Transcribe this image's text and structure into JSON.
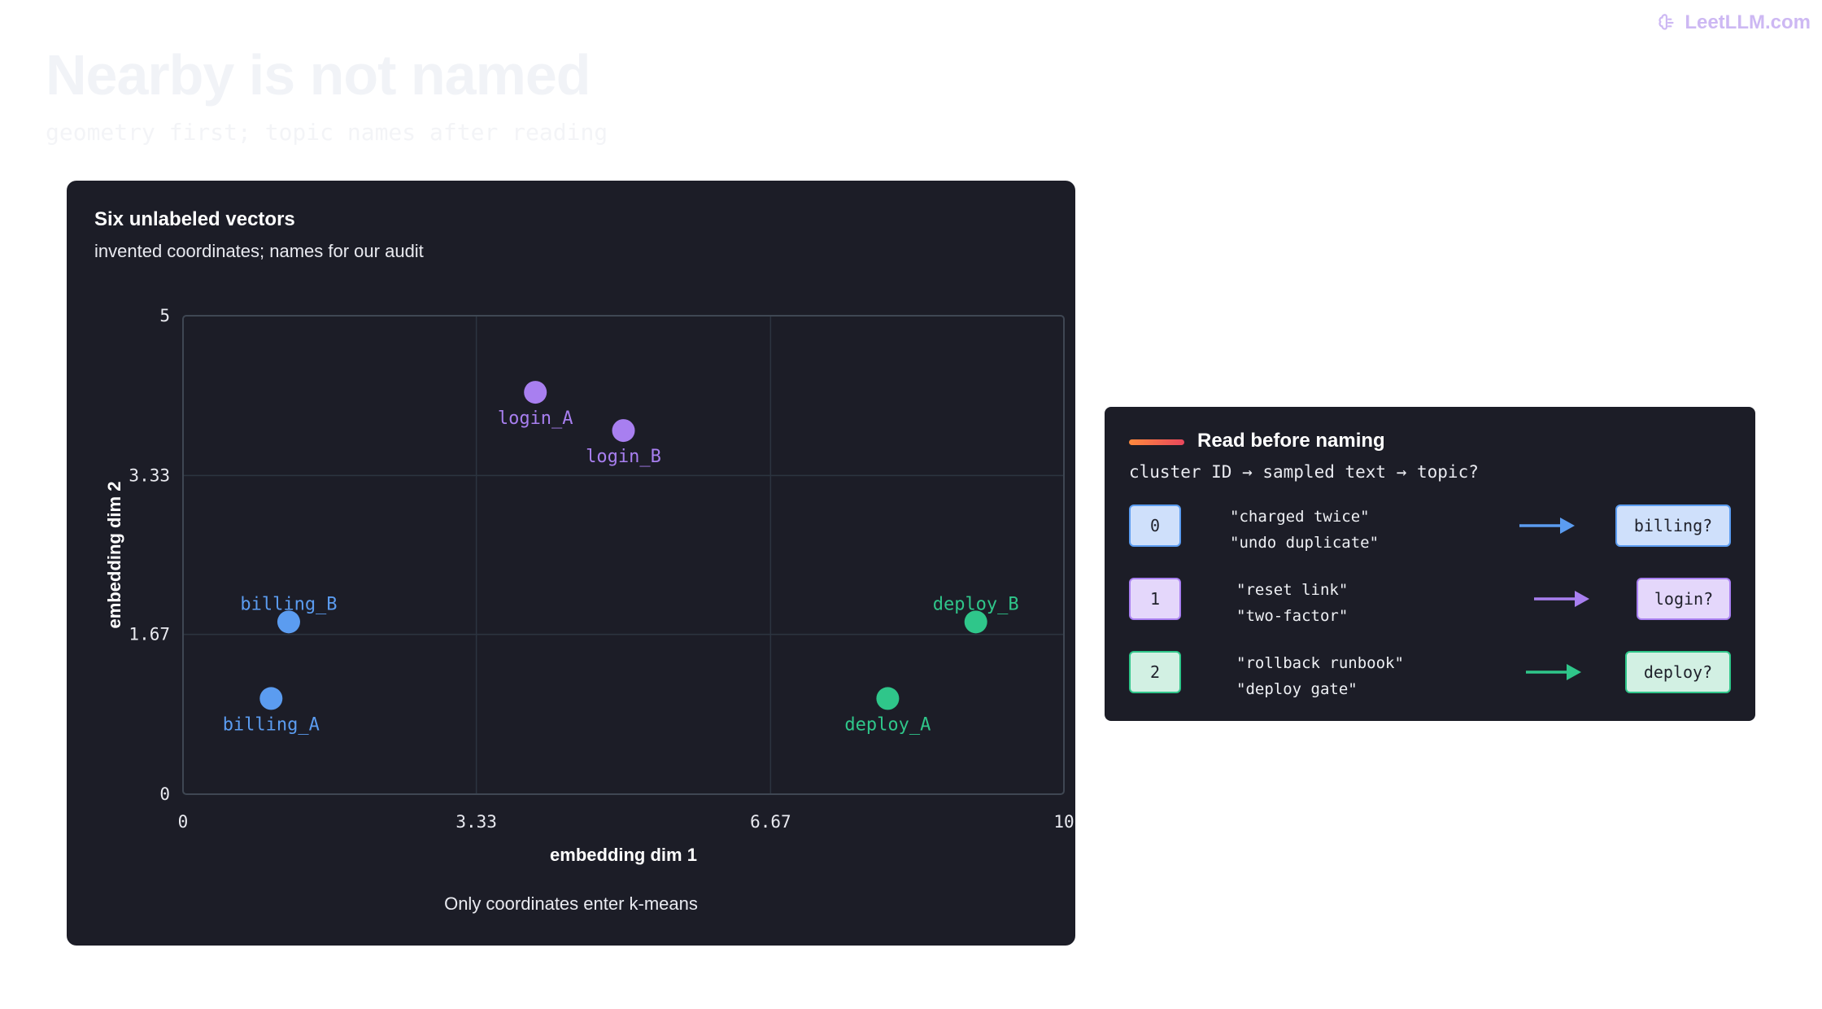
{
  "brand": {
    "label": "LeetLLM.com",
    "icon": "brain-icon",
    "color": "#cdb8f3"
  },
  "page": {
    "title": "Nearby is not named",
    "subtitle": "geometry first; topic names after reading"
  },
  "chart_card": {
    "title": "Six unlabeled vectors",
    "subtitle": "invented coordinates; names for our audit",
    "footnote": "Only coordinates enter k-means"
  },
  "chart_data": {
    "type": "scatter",
    "xlabel": "embedding dim 1",
    "ylabel": "embedding dim 2",
    "xlim": [
      0,
      10
    ],
    "ylim": [
      0,
      5
    ],
    "x_ticks": [
      {
        "value": 0,
        "label": "0"
      },
      {
        "value": 3.33,
        "label": "3.33"
      },
      {
        "value": 6.67,
        "label": "6.67"
      },
      {
        "value": 10,
        "label": "10"
      }
    ],
    "y_ticks": [
      {
        "value": 0,
        "label": "0"
      },
      {
        "value": 1.67,
        "label": "1.67"
      },
      {
        "value": 3.33,
        "label": "3.33"
      },
      {
        "value": 5,
        "label": "5"
      }
    ],
    "grid": true,
    "points": [
      {
        "label": "login_A",
        "x": 4.0,
        "y": 4.2,
        "color": "#a87ff0"
      },
      {
        "label": "login_B",
        "x": 5.0,
        "y": 3.8,
        "color": "#a87ff0"
      },
      {
        "label": "billing_B",
        "x": 1.2,
        "y": 1.8,
        "color": "#5b9cf0"
      },
      {
        "label": "billing_A",
        "x": 1.0,
        "y": 1.0,
        "color": "#5b9cf0"
      },
      {
        "label": "deploy_B",
        "x": 9.0,
        "y": 1.8,
        "color": "#2fc68a"
      },
      {
        "label": "deploy_A",
        "x": 8.0,
        "y": 1.0,
        "color": "#2fc68a"
      }
    ]
  },
  "panel": {
    "title": "Read before naming",
    "subtitle": "cluster ID → sampled text → topic?",
    "rows": [
      {
        "id": "0",
        "samples": [
          "\"charged twice\"",
          "\"undo duplicate\""
        ],
        "topic": "billing?",
        "color": "#5b9cf0",
        "fill": "#cfe0fb"
      },
      {
        "id": "1",
        "samples": [
          "\"reset link\"",
          "\"two-factor\""
        ],
        "topic": "login?",
        "color": "#a87ff0",
        "fill": "#e4d7fb"
      },
      {
        "id": "2",
        "samples": [
          "\"rollback runbook\"",
          "\"deploy gate\""
        ],
        "topic": "deploy?",
        "color": "#2fc68a",
        "fill": "#d2f0e3"
      }
    ]
  }
}
